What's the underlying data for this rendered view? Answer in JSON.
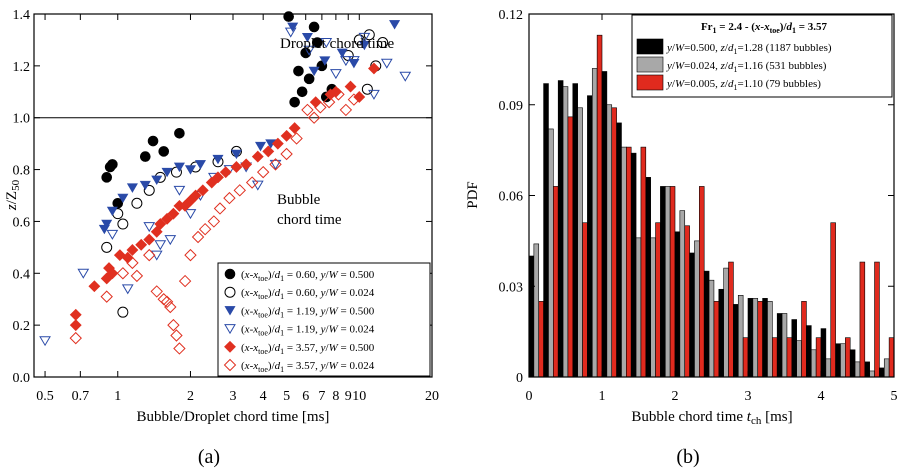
{
  "chart_data": [
    {
      "panel_label": "(a)",
      "type": "scatter",
      "xscale": "log",
      "xlim": [
        0.45,
        20
      ],
      "ylim": [
        0.0,
        1.4
      ],
      "xlabel": "Bubble/Droplet chord time  [ms]",
      "ylabel": "z/Z50",
      "x_ticks": [
        {
          "v": 0.5,
          "label": "0.5"
        },
        {
          "v": 0.7,
          "label": "0.7"
        },
        {
          "v": 1,
          "label": "1"
        },
        {
          "v": 2,
          "label": "2"
        },
        {
          "v": 3,
          "label": "3"
        },
        {
          "v": 4,
          "label": "4"
        },
        {
          "v": 5,
          "label": "5"
        },
        {
          "v": 6,
          "label": "6"
        },
        {
          "v": 7,
          "label": "7"
        },
        {
          "v": 8,
          "label": "8"
        },
        {
          "v": 9,
          "label": "9"
        },
        {
          "v": 10,
          "label": "10"
        },
        {
          "v": 20,
          "label": "20"
        }
      ],
      "y_ticks": [
        {
          "v": 0,
          "label": "0.0"
        },
        {
          "v": 0.2,
          "label": "0.2"
        },
        {
          "v": 0.4,
          "label": "0.4"
        },
        {
          "v": 0.6,
          "label": "0.6"
        },
        {
          "v": 0.8,
          "label": "0.8"
        },
        {
          "v": 1.0,
          "label": "1.0"
        },
        {
          "v": 1.2,
          "label": "1.2"
        },
        {
          "v": 1.4,
          "label": "1.4"
        }
      ],
      "reference_line_y": 1.0,
      "annotations": [
        "Droplet chord time",
        "Bubble",
        "chord time"
      ],
      "legend_position": "bottom-right",
      "series": [
        {
          "name": "(x-xtoe)/d1 = 0.60, y/W = 0.500",
          "marker": "circle-filled",
          "color": "#000000",
          "points": [
            [
              0.9,
              0.77
            ],
            [
              0.93,
              0.81
            ],
            [
              0.95,
              0.82
            ],
            [
              1.0,
              0.67
            ],
            [
              1.3,
              0.85
            ],
            [
              1.4,
              0.91
            ],
            [
              1.55,
              0.87
            ],
            [
              1.8,
              0.94
            ],
            [
              5.1,
              1.39
            ],
            [
              5.6,
              1.18
            ],
            [
              6.0,
              1.25
            ],
            [
              6.2,
              1.15
            ],
            [
              6.5,
              1.35
            ],
            [
              6.7,
              1.29
            ],
            [
              7.0,
              1.2
            ],
            [
              7.3,
              1.08
            ],
            [
              7.7,
              1.11
            ],
            [
              5.4,
              1.06
            ],
            [
              5.8,
              1.1
            ]
          ]
        },
        {
          "name": "(x-xtoe)/d1 = 0.60, y/W = 0.024",
          "marker": "circle-open",
          "color": "#000000",
          "points": [
            [
              0.9,
              0.5
            ],
            [
              1.0,
              0.63
            ],
            [
              1.05,
              0.59
            ],
            [
              1.2,
              0.67
            ],
            [
              1.35,
              0.72
            ],
            [
              1.5,
              0.77
            ],
            [
              1.75,
              0.79
            ],
            [
              2.1,
              0.81
            ],
            [
              2.6,
              0.83
            ],
            [
              3.1,
              0.87
            ],
            [
              9.0,
              1.24
            ],
            [
              10.0,
              1.3
            ],
            [
              11.0,
              1.32
            ],
            [
              11.7,
              1.2
            ],
            [
              12.5,
              1.29
            ],
            [
              10.8,
              1.11
            ],
            [
              1.05,
              0.25
            ]
          ]
        },
        {
          "name": "(x-xtoe)/d1 = 1.19, y/W = 0.500",
          "marker": "triangle-filled",
          "color": "#2a4aa8",
          "points": [
            [
              0.88,
              0.57
            ],
            [
              0.9,
              0.59
            ],
            [
              0.95,
              0.64
            ],
            [
              1.05,
              0.69
            ],
            [
              1.15,
              0.73
            ],
            [
              1.3,
              0.74
            ],
            [
              1.45,
              0.76
            ],
            [
              1.6,
              0.79
            ],
            [
              1.8,
              0.81
            ],
            [
              2.0,
              0.8
            ],
            [
              2.2,
              0.82
            ],
            [
              2.6,
              0.84
            ],
            [
              3.1,
              0.86
            ],
            [
              3.9,
              0.89
            ],
            [
              4.3,
              0.9
            ],
            [
              5.3,
              1.35
            ],
            [
              6.1,
              1.31
            ],
            [
              6.5,
              1.18
            ],
            [
              7.2,
              1.22
            ],
            [
              8.5,
              1.25
            ],
            [
              9.5,
              1.21
            ],
            [
              10.5,
              1.28
            ],
            [
              14.0,
              1.36
            ]
          ]
        },
        {
          "name": "(x-xtoe)/d1 = 1.19, y/W = 0.024",
          "marker": "triangle-open",
          "color": "#2a4aa8",
          "points": [
            [
              0.5,
              0.14
            ],
            [
              0.72,
              0.4
            ],
            [
              0.95,
              0.55
            ],
            [
              1.1,
              0.34
            ],
            [
              1.35,
              0.58
            ],
            [
              1.45,
              0.47
            ],
            [
              1.5,
              0.51
            ],
            [
              1.65,
              0.53
            ],
            [
              1.8,
              0.72
            ],
            [
              2.0,
              0.63
            ],
            [
              2.2,
              0.7
            ],
            [
              2.5,
              0.77
            ],
            [
              2.9,
              0.8
            ],
            [
              3.4,
              0.81
            ],
            [
              3.8,
              0.74
            ],
            [
              4.5,
              0.82
            ],
            [
              5.2,
              1.33
            ],
            [
              6.2,
              1.26
            ],
            [
              7.3,
              1.29
            ],
            [
              8.0,
              1.17
            ],
            [
              8.8,
              1.22
            ],
            [
              9.5,
              1.22
            ],
            [
              10.5,
              1.31
            ],
            [
              13.0,
              1.21
            ],
            [
              15.5,
              1.16
            ],
            [
              11.5,
              1.09
            ]
          ]
        },
        {
          "name": "(x-xtoe)/d1 = 3.57, y/W = 0.500",
          "marker": "diamond-filled",
          "color": "#e03020",
          "points": [
            [
              0.67,
              0.2
            ],
            [
              0.67,
              0.24
            ],
            [
              0.8,
              0.35
            ],
            [
              0.9,
              0.38
            ],
            [
              0.92,
              0.42
            ],
            [
              0.95,
              0.4
            ],
            [
              1.02,
              0.47
            ],
            [
              1.1,
              0.46
            ],
            [
              1.15,
              0.49
            ],
            [
              1.25,
              0.51
            ],
            [
              1.35,
              0.53
            ],
            [
              1.45,
              0.56
            ],
            [
              1.5,
              0.59
            ],
            [
              1.6,
              0.61
            ],
            [
              1.7,
              0.63
            ],
            [
              1.8,
              0.66
            ],
            [
              1.9,
              0.66
            ],
            [
              2.0,
              0.68
            ],
            [
              2.1,
              0.7
            ],
            [
              2.25,
              0.72
            ],
            [
              2.45,
              0.75
            ],
            [
              2.6,
              0.77
            ],
            [
              2.8,
              0.79
            ],
            [
              3.1,
              0.81
            ],
            [
              3.4,
              0.82
            ],
            [
              3.8,
              0.85
            ],
            [
              4.2,
              0.87
            ],
            [
              4.6,
              0.9
            ],
            [
              5.0,
              0.93
            ],
            [
              5.4,
              0.96
            ],
            [
              6.6,
              1.06
            ],
            [
              7.6,
              1.09
            ],
            [
              8.0,
              1.1
            ],
            [
              9.2,
              1.12
            ],
            [
              10.0,
              1.08
            ],
            [
              11.5,
              1.19
            ]
          ]
        },
        {
          "name": "(x-xtoe)/d1 = 3.57, y/W = 0.024",
          "marker": "diamond-open",
          "color": "#e03020",
          "points": [
            [
              0.67,
              0.15
            ],
            [
              0.9,
              0.31
            ],
            [
              1.05,
              0.4
            ],
            [
              1.15,
              0.44
            ],
            [
              1.2,
              0.39
            ],
            [
              1.35,
              0.47
            ],
            [
              1.45,
              0.33
            ],
            [
              1.55,
              0.3
            ],
            [
              1.6,
              0.29
            ],
            [
              1.65,
              0.27
            ],
            [
              1.7,
              0.2
            ],
            [
              1.75,
              0.16
            ],
            [
              1.8,
              0.11
            ],
            [
              1.9,
              0.37
            ],
            [
              2.0,
              0.47
            ],
            [
              2.15,
              0.54
            ],
            [
              2.3,
              0.57
            ],
            [
              2.5,
              0.6
            ],
            [
              2.65,
              0.65
            ],
            [
              2.9,
              0.69
            ],
            [
              3.2,
              0.72
            ],
            [
              3.6,
              0.75
            ],
            [
              4.0,
              0.79
            ],
            [
              4.5,
              0.82
            ],
            [
              5.0,
              0.86
            ],
            [
              5.5,
              0.92
            ],
            [
              6.1,
              1.03
            ],
            [
              6.5,
              1.0
            ],
            [
              6.9,
              1.04
            ],
            [
              7.5,
              1.06
            ],
            [
              8.2,
              1.09
            ],
            [
              8.8,
              1.03
            ],
            [
              9.5,
              1.07
            ]
          ]
        }
      ]
    },
    {
      "panel_label": "(b)",
      "type": "bar",
      "xlim": [
        0,
        5
      ],
      "ylim": [
        0,
        0.12
      ],
      "xlabel": "Bubble chord time tch  [ms]",
      "ylabel": "PDF",
      "x_ticks": [
        {
          "v": 0,
          "label": "0"
        },
        {
          "v": 1,
          "label": "1"
        },
        {
          "v": 2,
          "label": "2"
        },
        {
          "v": 3,
          "label": "3"
        },
        {
          "v": 4,
          "label": "4"
        },
        {
          "v": 5,
          "label": "5"
        }
      ],
      "y_ticks": [
        {
          "v": 0,
          "label": "0"
        },
        {
          "v": 0.03,
          "label": "0.03"
        },
        {
          "v": 0.06,
          "label": "0.06"
        },
        {
          "v": 0.09,
          "label": "0.09"
        },
        {
          "v": 0.12,
          "label": "0.12"
        }
      ],
      "bin_width": 0.2,
      "bin_starts": [
        0.0,
        0.2,
        0.4,
        0.6,
        0.8,
        1.0,
        1.2,
        1.4,
        1.6,
        1.8,
        2.0,
        2.2,
        2.4,
        2.6,
        2.8,
        3.0,
        3.2,
        3.4,
        3.6,
        3.8,
        4.0,
        4.2,
        4.4,
        4.6,
        4.8
      ],
      "legend_title": "Fr1 = 2.4 - (x-xtoe)/d1 = 3.57",
      "legend_position": "top-right",
      "series": [
        {
          "name": "y/W=0.500, z/d1=1.28 (1187 bubbles)",
          "color": "#000000",
          "values": [
            0.04,
            0.097,
            0.098,
            0.097,
            0.093,
            0.101,
            0.084,
            0.074,
            0.066,
            0.063,
            0.048,
            0.041,
            0.035,
            0.029,
            0.024,
            0.026,
            0.026,
            0.021,
            0.019,
            0.017,
            0.016,
            0.011,
            0.009,
            0.005,
            0.003
          ]
        },
        {
          "name": "y/W=0.024, z/d1=1.16 (531 bubbles)",
          "color": "#a8a8a8",
          "values": [
            0.044,
            0.082,
            0.096,
            0.089,
            0.102,
            0.09,
            0.076,
            0.046,
            0.046,
            0.063,
            0.055,
            0.045,
            0.032,
            0.036,
            0.027,
            0.026,
            0.025,
            0.021,
            0.012,
            0.009,
            0.006,
            0.011,
            0.005,
            0.002,
            0.006
          ]
        },
        {
          "name": "y/W=0.005, z/d1=1.10 (79 bubbles)",
          "color": "#e02a1e",
          "values": [
            0.025,
            0.063,
            0.086,
            0.051,
            0.113,
            0.089,
            0.076,
            0.076,
            0.051,
            0.063,
            0.05,
            0.063,
            0.025,
            0.038,
            0.013,
            0.025,
            0.013,
            0.013,
            0.025,
            0.013,
            0.051,
            0.013,
            0.038,
            0.038,
            0.013
          ]
        }
      ]
    }
  ]
}
